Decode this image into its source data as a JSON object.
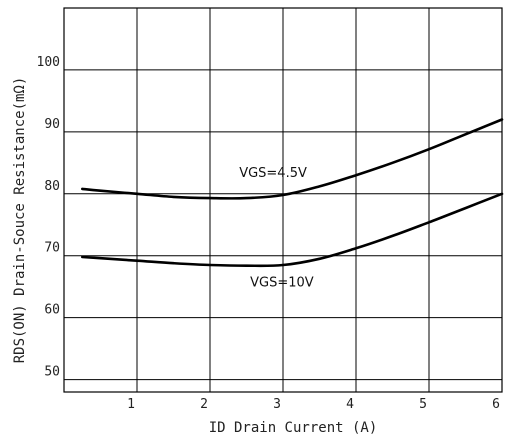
{
  "chart_data": {
    "type": "line",
    "xlabel": "ID Drain Current (A)",
    "ylabel": "RDS(ON) Drain-Souce Resistance(mΩ)",
    "xlim": [
      0,
      6
    ],
    "ylim": [
      48,
      110
    ],
    "x_ticks": [
      "1",
      "2",
      "3",
      "4",
      "5",
      "6"
    ],
    "y_ticks": [
      "50",
      "60",
      "70",
      "80",
      "90",
      "100"
    ],
    "grid": true,
    "series": [
      {
        "name": "VGS=4.5V",
        "x": [
          0.25,
          0.5,
          1.0,
          1.5,
          2.0,
          2.5,
          3.0,
          3.5,
          4.0,
          4.5,
          5.0,
          5.5,
          6.0
        ],
        "values": [
          80.8,
          80.5,
          80.0,
          79.5,
          79.3,
          79.3,
          79.8,
          81.2,
          83.0,
          85.0,
          87.2,
          89.6,
          92.0
        ]
      },
      {
        "name": "VGS=10V",
        "x": [
          0.25,
          0.5,
          1.0,
          1.5,
          2.0,
          2.5,
          3.0,
          3.5,
          4.0,
          4.5,
          5.0,
          5.5,
          6.0
        ],
        "values": [
          69.8,
          69.6,
          69.2,
          68.8,
          68.5,
          68.4,
          68.5,
          69.5,
          71.2,
          73.2,
          75.4,
          77.7,
          80.0
        ]
      }
    ],
    "annotations": [
      {
        "text": "VGS=4.5V",
        "x": 2.4,
        "y": 82.7
      },
      {
        "text": "VGS=10V",
        "x": 2.55,
        "y": 65.0
      }
    ]
  }
}
